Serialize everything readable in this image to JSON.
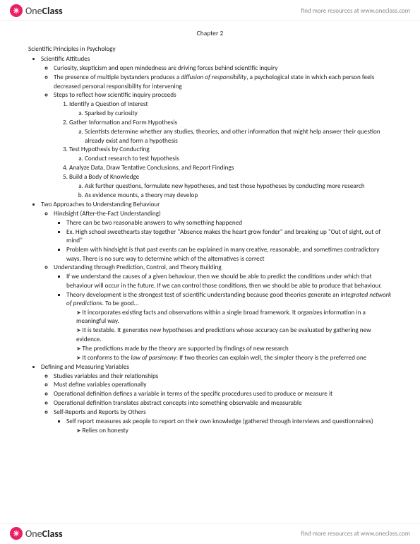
{
  "brand": {
    "name_1": "One",
    "name_2": "Class",
    "tagline": "find more resources at www.oneclass.com"
  },
  "chapter_title": "Chapter 2",
  "main_heading": "Scientific Principles in Psychology",
  "b1": {
    "title": "Scientific Attitudes",
    "p1": "Curiosity, skepticism and open mindedness are driving forces behind scientific inquiry",
    "p2a": "The presence of multiple bystanders produces a ",
    "p2i": "diffusion of responsibility",
    "p2b": ", a psychological state in which each person feels decreased personal responsibility for intervening",
    "p3": "Steps to reflect how scientific inquiry proceeds",
    "s1": "Identify a Question of Interest",
    "s1a": "Sparked by curiosity",
    "s2": "Gather Information and Form Hypothesis",
    "s2a": "Scientists determine whether any studies, theories, and other information that might help answer their question already exist and form a hypothesis",
    "s3": "Test Hypothesis by Conducting",
    "s3a": "Conduct research to test hypothesis",
    "s4": "Analyze Data, Draw Tentative Conclusions, and Report Findings",
    "s5": "Build a Body of Knowledge",
    "s5a": "Ask further questions, formulate new hypotheses, and test those hypotheses by conducting more research",
    "s5b": "As evidence mounts, a theory may develop"
  },
  "b2": {
    "title": "Two Approaches to Understanding Behaviour",
    "h1": "Hindsight (After-the-Fact Understanding)",
    "h1_1": "There can be two reasonable answers to why something happened",
    "h1_2": "Ex. High school sweethearts stay together \"Absence makes the heart grow fonder\" and breaking up \"Out of sight, out of mind\"",
    "h1_3": "Problem with hindsight is that past events can be explained in many creative, reasonable, and sometimes contradictory ways. There is no sure way to determine which of the alternatives is correct",
    "h2": "Understanding through Prediction, Control, and Theory Building",
    "h2_1": "If we understand the causes of a given behaviour, then we should be able to predict the conditions under which that behaviour will occur in the future. If we can control those conditions, then we should be able to produce that behaviour.",
    "h2_2a": "Theory development is the strongest test of scientific understanding because good theories generate an ",
    "h2_2i": "integrated network of predictions",
    "h2_2b": ". To be good…",
    "h2_g1": "It incorporates existing facts and observations within a single broad framework. It organizes information in a meaningful way.",
    "h2_g2": "It is testable. It generates new hypotheses and predictions whose accuracy can be evaluated by gathering new evidence.",
    "h2_g3": "The predictions made by the theory are supported by findings of new research",
    "h2_g4a": "It conforms to the ",
    "h2_g4i": "law of parsimony",
    "h2_g4b": ": If two theories can explain well, the simpler theory is the preferred one"
  },
  "b3": {
    "title": "Defining and Measuring Variables",
    "p1": "Studies variables and their relationships",
    "p2": "Must define variables operationally",
    "p3": "Operational definition defines a variable in terms of the specific procedures used to produce or measure it",
    "p4": "Operational definition translates abstract concepts into something observable and measurable",
    "p5": "Self-Reports and Reports by Others",
    "p5_1": "Self report measures ask people to report on their own knowledge (gathered through interviews and questionnaires)",
    "p5_1a": "Relies on honesty"
  }
}
